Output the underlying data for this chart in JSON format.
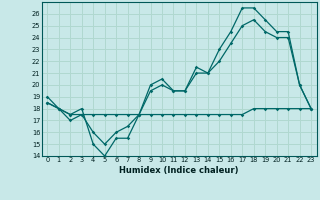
{
  "xlabel": "Humidex (Indice chaleur)",
  "bg_color": "#c8e8e8",
  "grid_color": "#b0d8d0",
  "line_color": "#006868",
  "x_values": [
    0,
    1,
    2,
    3,
    4,
    5,
    6,
    7,
    8,
    9,
    10,
    11,
    12,
    13,
    14,
    15,
    16,
    17,
    18,
    19,
    20,
    21,
    22,
    23
  ],
  "y_top": [
    19,
    18,
    17.5,
    18,
    15,
    14,
    15.5,
    15.5,
    17.5,
    20,
    20.5,
    19.5,
    19.5,
    21.5,
    21,
    23,
    24.5,
    26.5,
    26.5,
    25.5,
    24.5,
    24.5,
    20,
    18
  ],
  "y_mid": [
    18.5,
    18,
    17.5,
    17.5,
    16,
    15,
    16,
    16.5,
    17.5,
    19.5,
    20,
    19.5,
    19.5,
    21,
    21,
    22,
    23.5,
    25,
    25.5,
    24.5,
    24,
    24,
    20,
    18
  ],
  "y_bot": [
    18.5,
    18,
    17,
    17.5,
    17.5,
    17.5,
    17.5,
    17.5,
    17.5,
    17.5,
    17.5,
    17.5,
    17.5,
    17.5,
    17.5,
    17.5,
    17.5,
    17.5,
    18,
    18,
    18,
    18,
    18,
    18
  ],
  "ylim": [
    14,
    27
  ],
  "xlim": [
    -0.5,
    23.5
  ],
  "yticks": [
    14,
    15,
    16,
    17,
    18,
    19,
    20,
    21,
    22,
    23,
    24,
    25,
    26
  ],
  "xticks": [
    0,
    1,
    2,
    3,
    4,
    5,
    6,
    7,
    8,
    9,
    10,
    11,
    12,
    13,
    14,
    15,
    16,
    17,
    18,
    19,
    20,
    21,
    22,
    23
  ]
}
